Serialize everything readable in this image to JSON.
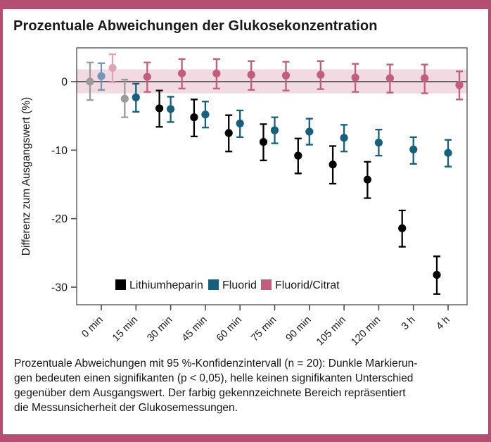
{
  "caption": {
    "lines": [
      "Prozentuale Abweichungen mit 95 %-Konfidenzintervall (n = 20): Dunkle Markierun-",
      "gen bedeuten einen signifikanten (p < 0,05), helle keinen signifikanten Unterschied",
      "gegenüber dem Ausgangswert. Der farbig gekennzeichnete Bereich repräsentiert",
      "die Messunsicherheit der Glukosemessungen."
    ]
  },
  "frame_color": "#b44e72",
  "chart_data": {
    "type": "scatter",
    "title": "Prozentuale Abweichungen der Glukosekonzentration",
    "ylabel": "Differenz zum Ausgangswert (%)",
    "categories": [
      "0 min",
      "15 min",
      "30 min",
      "45 min",
      "60 min",
      "75 min",
      "90 min",
      "105 min",
      "120 min",
      "3 h",
      "4 h"
    ],
    "yticks": [
      0,
      -10,
      -20,
      -30
    ],
    "ylim": [
      4.9,
      -32.4
    ],
    "grid": false,
    "legend_position": "bottom-left-inside",
    "zero_line": true,
    "uncertainty_band": {
      "from": 1.8,
      "to": -1.7,
      "color": "#f2dae2"
    },
    "series": [
      {
        "name": "Lithiumheparin",
        "color": "#000000",
        "light_color": "#9b9b9b",
        "values": [
          0.0,
          -2.5,
          -3.9,
          -5.2,
          -7.5,
          -8.8,
          -10.8,
          -12.1,
          -14.3,
          -21.4,
          -28.2
        ],
        "ci_high": [
          2.8,
          0.3,
          -1.3,
          -2.6,
          -4.9,
          -6.2,
          -8.3,
          -9.4,
          -11.7,
          -18.8,
          -25.5
        ],
        "ci_low": [
          -2.7,
          -5.2,
          -6.6,
          -8.0,
          -10.2,
          -11.5,
          -13.4,
          -14.9,
          -17.0,
          -24.1,
          -31.0
        ],
        "significant": [
          false,
          false,
          true,
          true,
          true,
          true,
          true,
          true,
          true,
          true,
          true
        ]
      },
      {
        "name": "Fluorid",
        "color": "#16607d",
        "light_color": "#7496b6",
        "values": [
          0.8,
          -2.3,
          -4.0,
          -4.8,
          -6.1,
          -7.1,
          -7.3,
          -8.2,
          -8.9,
          -9.9,
          -10.4
        ],
        "ci_high": [
          2.7,
          -0.3,
          -2.2,
          -2.9,
          -4.2,
          -5.2,
          -5.4,
          -6.3,
          -7.0,
          -8.1,
          -8.5
        ],
        "ci_low": [
          -1.2,
          -4.4,
          -5.9,
          -6.7,
          -8.1,
          -9.0,
          -9.2,
          -10.2,
          -10.8,
          -12.0,
          -12.4
        ],
        "significant": [
          false,
          true,
          true,
          true,
          true,
          true,
          true,
          true,
          true,
          true,
          true
        ]
      },
      {
        "name": "Fluorid/Citrat",
        "color": "#c05e7c",
        "light_color": "#dca6b7",
        "values": [
          2.0,
          0.7,
          1.2,
          1.2,
          1.0,
          0.9,
          1.0,
          0.6,
          0.5,
          0.5,
          -0.5
        ],
        "ci_high": [
          4.0,
          2.8,
          3.3,
          3.3,
          3.0,
          2.9,
          3.0,
          2.6,
          2.5,
          2.5,
          1.5
        ],
        "ci_low": [
          -0.1,
          -1.5,
          -1.0,
          -1.0,
          -1.2,
          -1.3,
          -1.1,
          -1.5,
          -1.6,
          -1.7,
          -2.6
        ],
        "significant": [
          false,
          true,
          true,
          true,
          true,
          true,
          true,
          true,
          true,
          true,
          true
        ]
      }
    ]
  }
}
